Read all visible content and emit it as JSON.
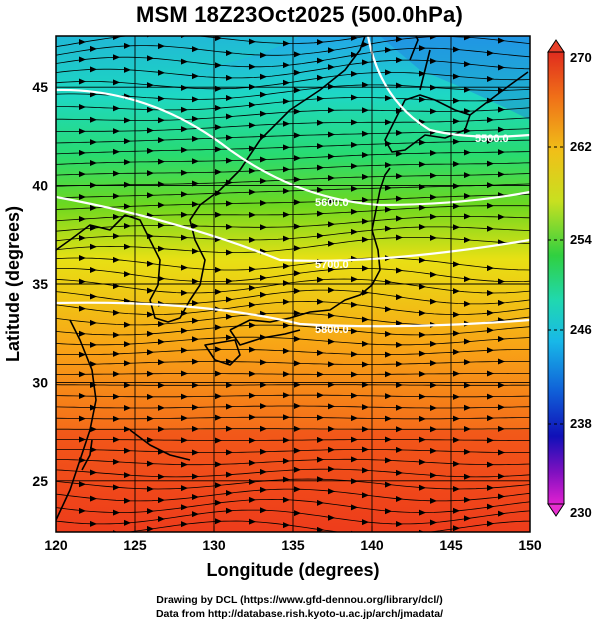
{
  "title": "MSM 18Z23Oct2025 (500.0hPa)",
  "map": {
    "x_axis_label": "Longitude (degrees)",
    "y_axis_label": "Latitude  (degrees)",
    "lon_range": [
      120,
      150
    ],
    "lat_range": [
      22.4,
      47.6
    ],
    "lon_ticks": [
      "120",
      "125",
      "130",
      "135",
      "140",
      "145",
      "150"
    ],
    "lat_ticks": [
      "25",
      "30",
      "35",
      "40",
      "45"
    ],
    "grid": true,
    "contours": [
      {
        "label": "5800.0",
        "color": "#ffffff"
      },
      {
        "label": "5700.0",
        "color": "#ffffff"
      },
      {
        "label": "5600.0",
        "color": "#ffffff"
      },
      {
        "label": "5500.0",
        "color": "#ffffff"
      }
    ],
    "field_description_colors": [
      "#f04a1c",
      "#f59a14",
      "#e6dd12",
      "#57d520",
      "#25dd86",
      "#1ad8c8",
      "#239be6"
    ],
    "streamline_color": "#000000"
  },
  "colorbar": {
    "max_label": "270",
    "min_label": "230",
    "tick_labels": [
      "262",
      "254",
      "246",
      "238"
    ],
    "colors": [
      "#e03020",
      "#f08018",
      "#f0c818",
      "#c8e020",
      "#30d040",
      "#20d8b0",
      "#1aa8e0",
      "#1050d0",
      "#1010b0",
      "#b010c0",
      "#e020c8"
    ]
  },
  "credits": {
    "line1": "Drawing by DCL (https://www.gfd-dennou.org/library/dcl/)",
    "line2": "Data from http://database.rish.kyoto-u.ac.jp/arch/jmadata/"
  }
}
